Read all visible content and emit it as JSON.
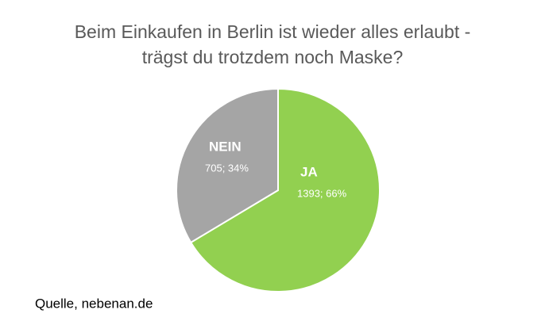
{
  "chart_data": {
    "type": "pie",
    "title": [
      "Beim Einkaufen in Berlin ist wieder alles erlaubt -",
      "trägst du trotzdem noch Maske?"
    ],
    "categories": [
      "JA",
      "NEIN"
    ],
    "values": [
      1393,
      705
    ],
    "value_labels": [
      "1393; 66%",
      "705; 34%"
    ],
    "colors": [
      "#92d050",
      "#a5a5a5"
    ],
    "source": "Quelle, nebenan.de"
  }
}
